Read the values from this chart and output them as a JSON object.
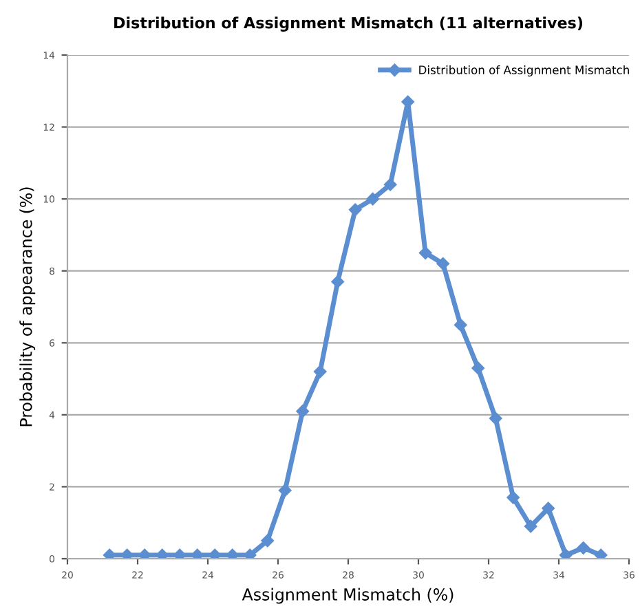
{
  "chart_data": {
    "type": "line",
    "title": "Distribution of Assignment Mismatch (11 alternatives)",
    "xlabel": "Assignment Mismatch (%)",
    "ylabel": "Probability of appearance (%)",
    "x": [
      21.2,
      21.7,
      22.2,
      22.7,
      23.2,
      23.7,
      24.2,
      24.7,
      25.2,
      25.7,
      26.2,
      26.7,
      27.2,
      27.7,
      28.2,
      28.7,
      29.2,
      29.7,
      30.2,
      30.7,
      31.2,
      31.7,
      32.2,
      32.7,
      33.2,
      33.7,
      34.2,
      34.7,
      35.2
    ],
    "series": [
      {
        "name": "Distribution of Assignment Mismatch",
        "color": "#5b8ed0",
        "values": [
          0.1,
          0.1,
          0.1,
          0.1,
          0.1,
          0.1,
          0.1,
          0.1,
          0.1,
          0.5,
          1.9,
          4.1,
          5.2,
          7.7,
          9.7,
          10.0,
          10.4,
          12.7,
          8.5,
          8.2,
          6.5,
          5.3,
          3.9,
          1.7,
          0.9,
          1.4,
          0.1,
          0.3,
          0.1
        ]
      }
    ],
    "xlim": [
      20,
      36
    ],
    "xticks": [
      20,
      22,
      24,
      26,
      28,
      30,
      32,
      34,
      36
    ],
    "ylim": [
      0,
      14
    ],
    "yticks": [
      0,
      2,
      4,
      6,
      8,
      10,
      12,
      14
    ],
    "grid": "y",
    "legend": "top right",
    "marker": "diamond",
    "line_style": "solid"
  }
}
